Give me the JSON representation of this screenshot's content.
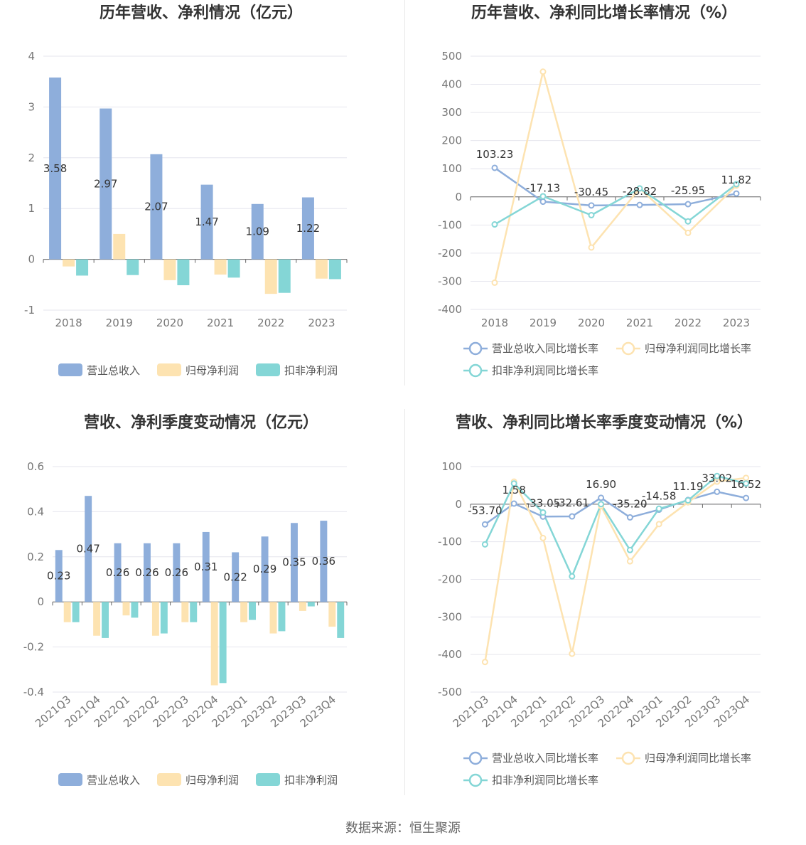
{
  "source": "数据来源：恒生聚源",
  "colors": {
    "revenue": "#8eaedb",
    "net_profit": "#fde3b1",
    "deducted_profit": "#84d6d6",
    "grid": "#e6e6ee",
    "axis": "#666666"
  },
  "chart_data": [
    {
      "type": "bar",
      "title": "历年营收、净利情况（亿元）",
      "categories": [
        "2018",
        "2019",
        "2020",
        "2021",
        "2022",
        "2023"
      ],
      "ylim": [
        -1,
        4
      ],
      "yticks": [
        -1,
        0,
        1,
        2,
        3,
        4
      ],
      "legend_position": "bottom",
      "series": [
        {
          "name": "营业总收入",
          "values": [
            3.58,
            2.97,
            2.07,
            1.47,
            1.09,
            1.22
          ],
          "labels": [
            "3.58",
            "2.97",
            "2.07",
            "1.47",
            "1.09",
            "1.22"
          ]
        },
        {
          "name": "归母净利润",
          "values": [
            -0.14,
            0.5,
            -0.41,
            -0.3,
            -0.68,
            -0.38
          ]
        },
        {
          "name": "扣非净利润",
          "values": [
            -0.32,
            -0.31,
            -0.51,
            -0.36,
            -0.66,
            -0.39
          ]
        }
      ]
    },
    {
      "type": "line",
      "title": "历年营收、净利同比增长率情况（%）",
      "categories": [
        "2018",
        "2019",
        "2020",
        "2021",
        "2022",
        "2023"
      ],
      "ylim": [
        -400,
        500
      ],
      "yticks": [
        -400,
        -300,
        -200,
        -100,
        0,
        100,
        200,
        300,
        400,
        500
      ],
      "legend_position": "bottom",
      "series": [
        {
          "name": "营业总收入同比增长率",
          "values": [
            103.23,
            -17.13,
            -30.45,
            -28.82,
            -25.95,
            11.82
          ],
          "labels": [
            "103.23",
            "-17.13",
            "-30.45",
            "-28.82",
            "-25.95",
            "11.82"
          ]
        },
        {
          "name": "归母净利润同比增长率",
          "values": [
            -305,
            445,
            -180,
            30,
            -128,
            40
          ]
        },
        {
          "name": "扣非净利润同比增长率",
          "values": [
            -98,
            2,
            -65,
            30,
            -87,
            45
          ]
        }
      ]
    },
    {
      "type": "bar",
      "title": "营收、净利季度变动情况（亿元）",
      "categories": [
        "2021Q3",
        "2021Q4",
        "2022Q1",
        "2022Q2",
        "2022Q3",
        "2022Q4",
        "2023Q1",
        "2023Q2",
        "2023Q3",
        "2023Q4"
      ],
      "ylim": [
        -0.4,
        0.6
      ],
      "yticks": [
        -0.4,
        -0.2,
        0,
        0.2,
        0.4,
        0.6
      ],
      "legend_position": "bottom",
      "series": [
        {
          "name": "营业总收入",
          "values": [
            0.23,
            0.47,
            0.26,
            0.26,
            0.26,
            0.31,
            0.22,
            0.29,
            0.35,
            0.36
          ],
          "labels": [
            "0.23",
            "0.47",
            "0.26",
            "0.26",
            "0.26",
            "0.31",
            "0.22",
            "0.29",
            "0.35",
            "0.36"
          ]
        },
        {
          "name": "归母净利润",
          "values": [
            -0.09,
            -0.15,
            -0.06,
            -0.15,
            -0.09,
            -0.37,
            -0.09,
            -0.14,
            -0.04,
            -0.11
          ]
        },
        {
          "name": "扣非净利润",
          "values": [
            -0.09,
            -0.16,
            -0.07,
            -0.14,
            -0.09,
            -0.36,
            -0.08,
            -0.13,
            -0.02,
            -0.16
          ]
        }
      ]
    },
    {
      "type": "line",
      "title": "营收、净利同比增长率季度变动情况（%）",
      "categories": [
        "2021Q3",
        "2021Q4",
        "2022Q1",
        "2022Q2",
        "2022Q3",
        "2022Q4",
        "2023Q1",
        "2023Q2",
        "2023Q3",
        "2023Q4"
      ],
      "ylim": [
        -500,
        100
      ],
      "yticks": [
        -500,
        -400,
        -300,
        -200,
        -100,
        0,
        100
      ],
      "legend_position": "bottom",
      "series": [
        {
          "name": "营业总收入同比增长率",
          "values": [
            -53.7,
            1.58,
            -33.05,
            -32.61,
            16.9,
            -35.2,
            -14.58,
            11.19,
            33.02,
            16.52
          ],
          "labels": [
            "-53.70",
            "1.58",
            "-33.05",
            "-32.61",
            "16.90",
            "-35.20",
            "-14.58",
            "11.19",
            "33.02",
            "16.52"
          ]
        },
        {
          "name": "归母净利润同比增长率",
          "values": [
            -420,
            60,
            -90,
            -398,
            -5,
            -152,
            -53,
            5,
            60,
            70
          ]
        },
        {
          "name": "扣非净利润同比增长率",
          "values": [
            -107,
            55,
            -22,
            -192,
            0,
            -122,
            -12,
            10,
            75,
            55
          ]
        }
      ]
    }
  ]
}
